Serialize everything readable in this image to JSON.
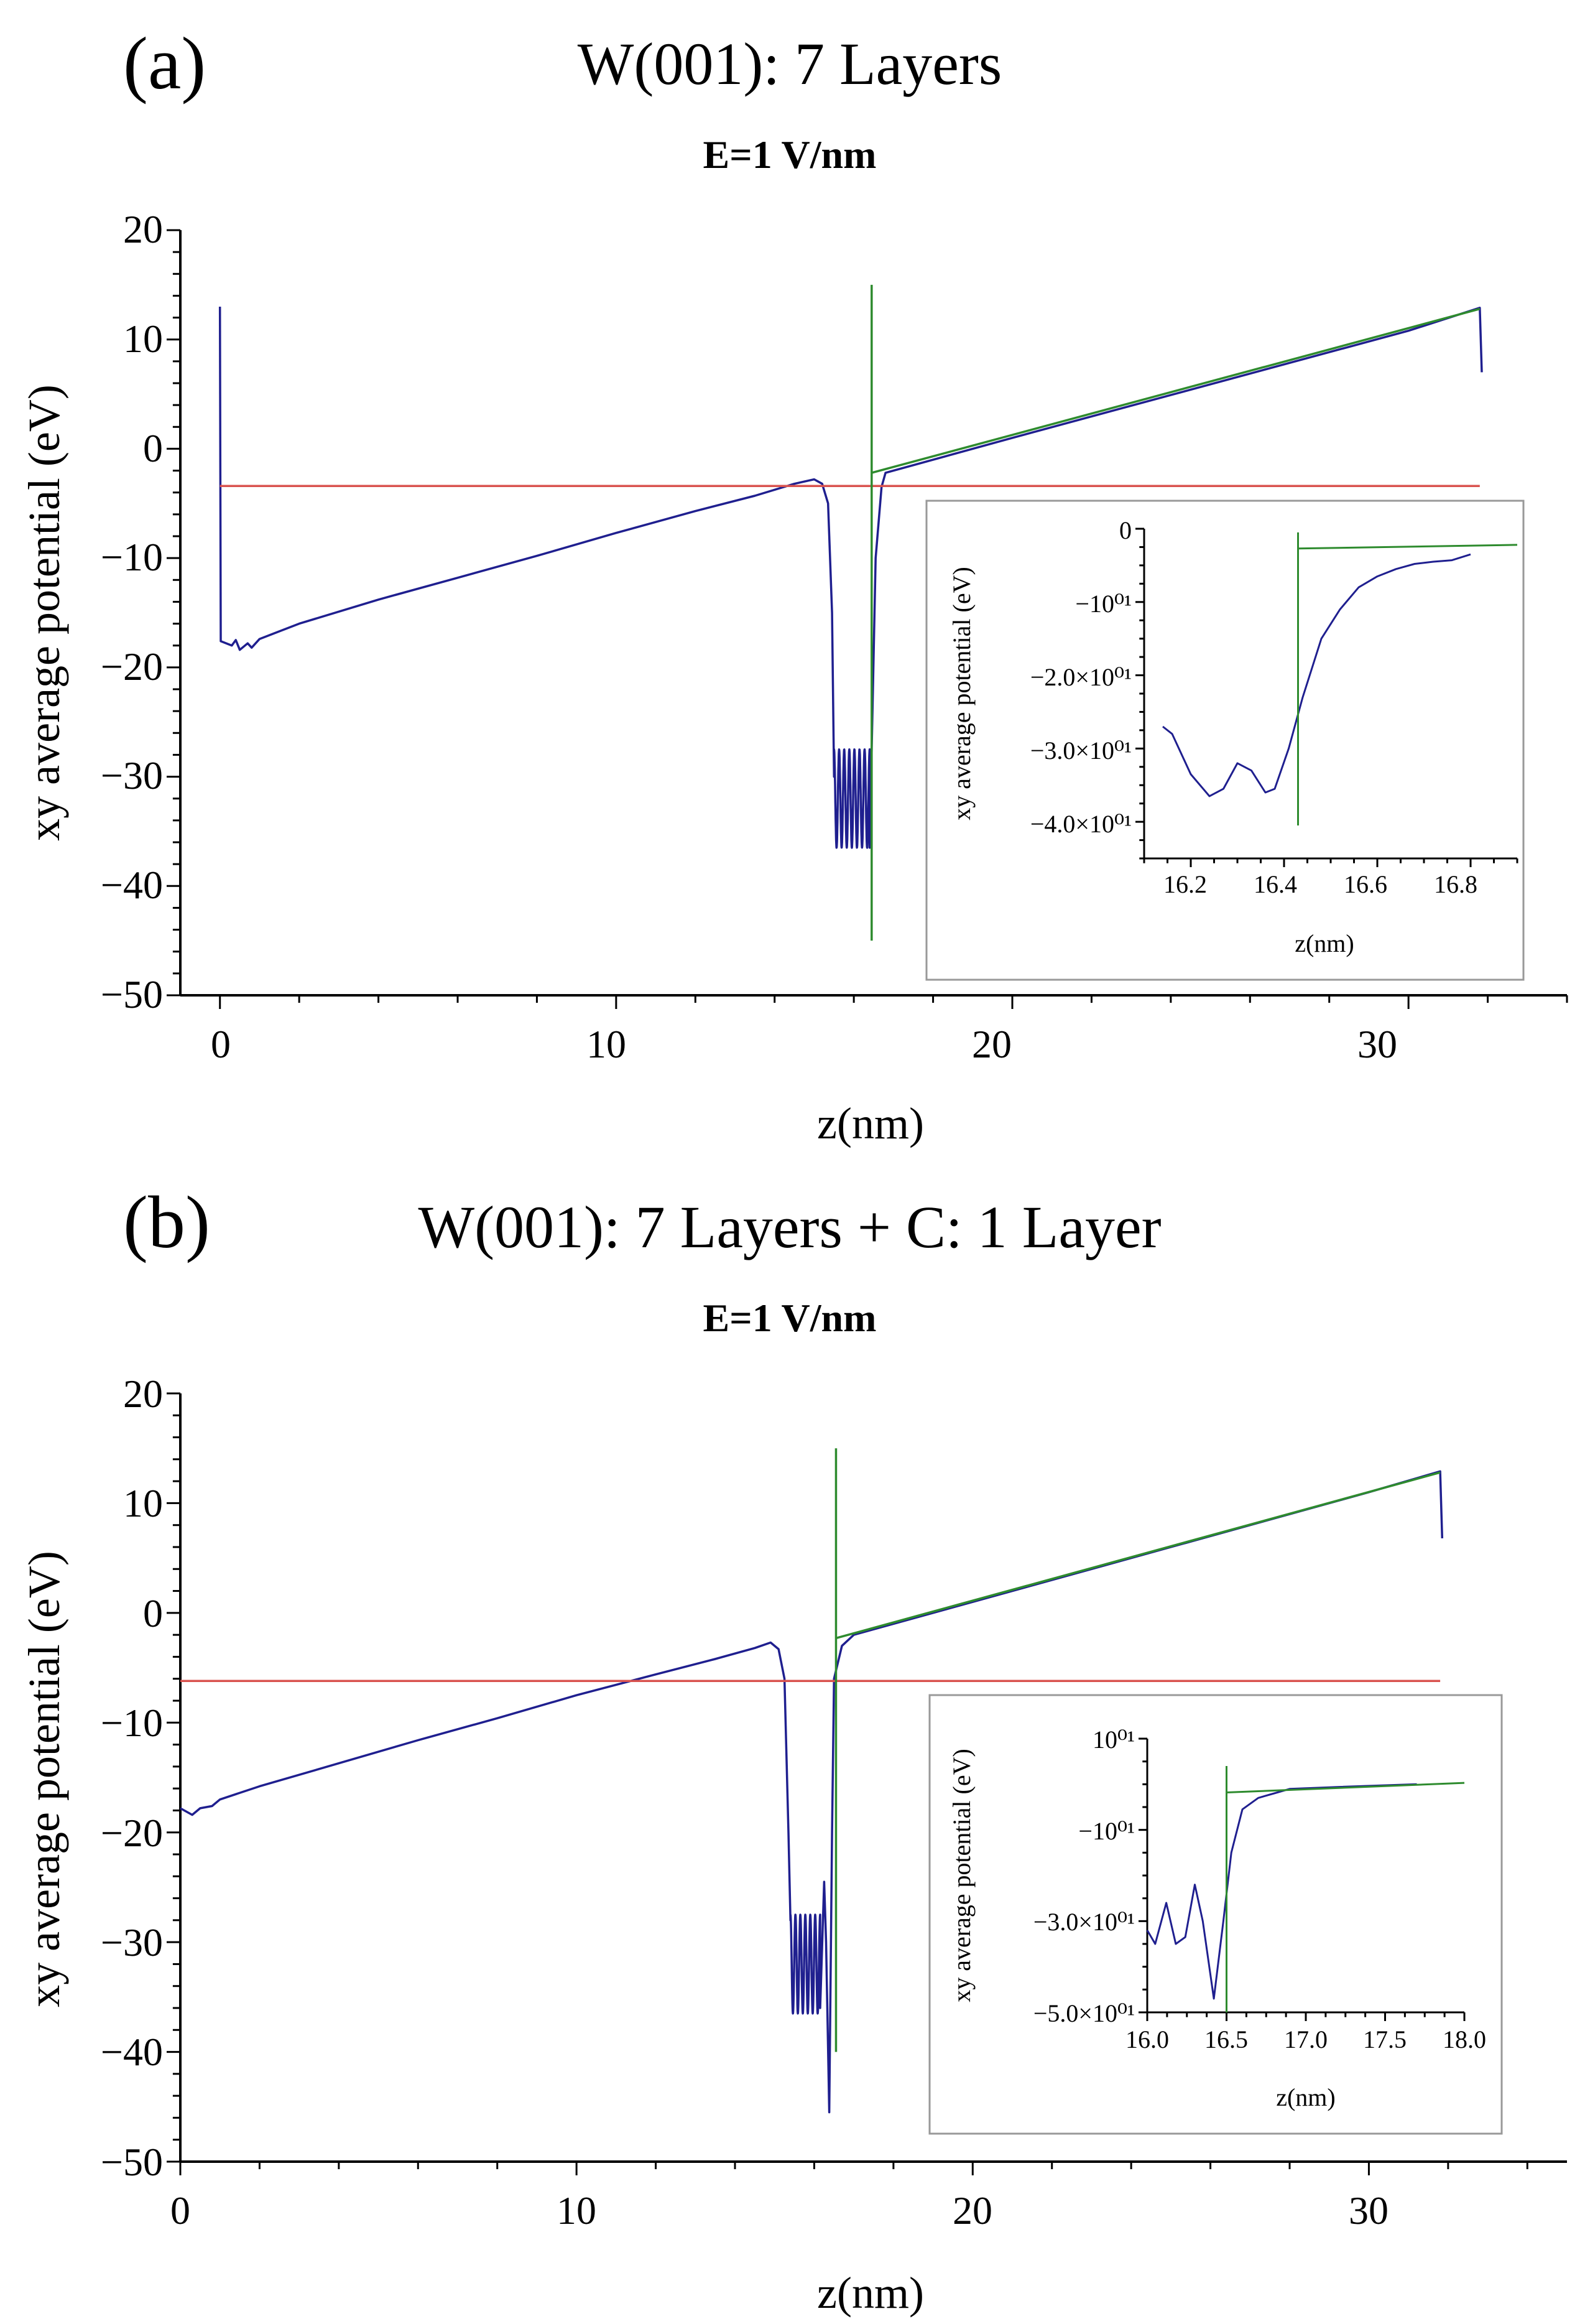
{
  "colors": {
    "potential": "#1f1f8f",
    "reference": "#d9534f",
    "fit": "#2e8b2e",
    "axis": "#000000",
    "inset_border": "#999999"
  },
  "charts": [
    {
      "panel_label": "(a)",
      "title": "W(001): 7 Layers",
      "subtitle": "E=1 V/nm",
      "xlabel": "z(nm)",
      "ylabel": "xy average potential (eV)",
      "xticks": [
        "0",
        "10",
        "20",
        "30"
      ],
      "yticks": [
        "20",
        "10",
        "0",
        "−10",
        "−20",
        "−30",
        "−40",
        "−50"
      ],
      "inset": {
        "xlabel": "z(nm)",
        "ylabel": "xy average potential (eV)",
        "xticks": [
          "16.2",
          "16.4",
          "16.6",
          "16.8"
        ],
        "yticks": [
          "0",
          "−10⁰¹",
          "−2.0×10⁰¹",
          "−3.0×10⁰¹",
          "−4.0×10⁰¹"
        ]
      }
    },
    {
      "panel_label": "(b)",
      "title": "W(001): 7 Layers + C: 1 Layer",
      "subtitle": "E=1 V/nm",
      "xlabel": "z(nm)",
      "ylabel": "xy average potential (eV)",
      "xticks": [
        "0",
        "10",
        "20",
        "30"
      ],
      "yticks": [
        "20",
        "10",
        "0",
        "−10",
        "−20",
        "−30",
        "−40",
        "−50"
      ],
      "inset": {
        "xlabel": "z(nm)",
        "ylabel": "xy average potential (eV)",
        "xticks": [
          "16.0",
          "16.5",
          "17.0",
          "17.5",
          "18.0"
        ],
        "yticks": [
          "10⁰¹",
          "−10⁰¹",
          "−3.0×10⁰¹",
          "−5.0×10⁰¹"
        ]
      }
    }
  ],
  "chart_data": [
    {
      "type": "line",
      "title": "W(001): 7 Layers",
      "subtitle": "E=1 V/nm",
      "xlabel": "z(nm)",
      "ylabel": "xy average potential (eV)",
      "xlim": [
        -1,
        34
      ],
      "ylim": [
        -50,
        20
      ],
      "xticks": [
        0,
        10,
        20,
        30
      ],
      "yticks": [
        20,
        10,
        0,
        -10,
        -20,
        -30,
        -40,
        -50
      ],
      "series": [
        {
          "role": "potential",
          "points": [
            [
              0.0,
              13
            ],
            [
              0.02,
              -17.6
            ],
            [
              0.3,
              -18.0
            ],
            [
              0.4,
              -17.5
            ],
            [
              0.5,
              -18.4
            ],
            [
              0.7,
              -17.8
            ],
            [
              0.8,
              -18.2
            ],
            [
              1.0,
              -17.4
            ],
            [
              2.0,
              -16.0
            ],
            [
              4.0,
              -13.8
            ],
            [
              6.0,
              -11.8
            ],
            [
              8.0,
              -9.8
            ],
            [
              10.0,
              -7.7
            ],
            [
              12.0,
              -5.7
            ],
            [
              13.5,
              -4.3
            ],
            [
              14.5,
              -3.2
            ],
            [
              15.0,
              -2.8
            ],
            [
              15.2,
              -3.2
            ],
            [
              15.35,
              -5.0
            ],
            [
              15.45,
              -15.0
            ],
            [
              15.5,
              -30.0
            ]
          ],
          "oscillation": {
            "x_start": 15.5,
            "x_end": 16.4,
            "cycles": 7,
            "y_max": -27.5,
            "y_min": -36.5
          },
          "tail": [
            [
              16.4,
              -36.5
            ],
            [
              16.55,
              -10.0
            ],
            [
              16.7,
              -3.5
            ],
            [
              16.8,
              -2.2
            ],
            [
              17.5,
              -1.5
            ],
            [
              20,
              1.0
            ],
            [
              25,
              5.9
            ],
            [
              30,
              10.8
            ],
            [
              31.8,
              12.9
            ],
            [
              31.85,
              7.0
            ]
          ]
        },
        {
          "role": "reference",
          "points": [
            [
              0.0,
              -3.4
            ],
            [
              31.8,
              -3.4
            ]
          ]
        },
        {
          "role": "fit",
          "segments": [
            [
              [
                16.45,
                15
              ],
              [
                16.45,
                -45
              ]
            ],
            [
              [
                16.45,
                -2.2
              ],
              [
                31.8,
                12.8
              ]
            ]
          ]
        }
      ],
      "inset": {
        "xlabel": "z(nm)",
        "ylabel": "xy average potential (eV)",
        "xlim": [
          16.1,
          16.9
        ],
        "ylim": [
          -45,
          0
        ],
        "xticks": [
          16.2,
          16.4,
          16.6,
          16.8
        ],
        "yticks": [
          0,
          -10,
          -20,
          -30,
          -40
        ],
        "series": [
          {
            "role": "potential",
            "points": [
              [
                16.14,
                -27.0
              ],
              [
                16.16,
                -28.0
              ],
              [
                16.2,
                -33.5
              ],
              [
                16.24,
                -36.5
              ],
              [
                16.27,
                -35.5
              ],
              [
                16.3,
                -32.0
              ],
              [
                16.33,
                -33.0
              ],
              [
                16.36,
                -36.0
              ],
              [
                16.38,
                -35.5
              ],
              [
                16.41,
                -30.0
              ],
              [
                16.44,
                -23.0
              ],
              [
                16.48,
                -15.0
              ],
              [
                16.52,
                -11.0
              ],
              [
                16.56,
                -8.0
              ],
              [
                16.6,
                -6.5
              ],
              [
                16.64,
                -5.5
              ],
              [
                16.68,
                -4.8
              ],
              [
                16.72,
                -4.5
              ],
              [
                16.76,
                -4.3
              ],
              [
                16.8,
                -3.5
              ]
            ]
          },
          {
            "role": "fit",
            "segments": [
              [
                [
                  16.43,
                  -0.5
                ],
                [
                  16.43,
                  -40.5
                ]
              ],
              [
                [
                  16.43,
                  -2.7
                ],
                [
                  16.9,
                  -2.2
                ]
              ]
            ]
          }
        ]
      }
    },
    {
      "type": "line",
      "title": "W(001): 7 Layers + C: 1 Layer",
      "subtitle": "E=1 V/nm",
      "xlabel": "z(nm)",
      "ylabel": "xy average potential (eV)",
      "xlim": [
        0,
        35
      ],
      "ylim": [
        -50,
        20
      ],
      "xticks": [
        0,
        10,
        20,
        30
      ],
      "yticks": [
        20,
        10,
        0,
        -10,
        -20,
        -30,
        -40,
        -50
      ],
      "series": [
        {
          "role": "potential",
          "points": [
            [
              0.0,
              -17.8
            ],
            [
              0.3,
              -18.4
            ],
            [
              0.5,
              -17.8
            ],
            [
              0.8,
              -17.6
            ],
            [
              1.0,
              -17.0
            ],
            [
              2.0,
              -15.8
            ],
            [
              4.0,
              -13.7
            ],
            [
              6.0,
              -11.6
            ],
            [
              8.0,
              -9.6
            ],
            [
              10.0,
              -7.5
            ],
            [
              12.0,
              -5.6
            ],
            [
              13.5,
              -4.2
            ],
            [
              14.5,
              -3.2
            ],
            [
              14.9,
              -2.7
            ],
            [
              15.1,
              -3.3
            ],
            [
              15.25,
              -6.0
            ],
            [
              15.35,
              -20.0
            ],
            [
              15.4,
              -28.0
            ]
          ],
          "oscillation": {
            "x_start": 15.4,
            "x_end": 16.15,
            "cycles": 6,
            "y_max": -27.5,
            "y_min": -36.5
          },
          "tail": [
            [
              16.15,
              -36.0
            ],
            [
              16.25,
              -24.5
            ],
            [
              16.3,
              -30.0
            ],
            [
              16.38,
              -45.5
            ],
            [
              16.45,
              -20.0
            ],
            [
              16.5,
              -6.0
            ],
            [
              16.7,
              -3.0
            ],
            [
              17.0,
              -2.0
            ],
            [
              20,
              1.0
            ],
            [
              25,
              6.0
            ],
            [
              30,
              11.0
            ],
            [
              31.8,
              12.9
            ],
            [
              31.85,
              6.8
            ]
          ]
        },
        {
          "role": "reference",
          "points": [
            [
              0.0,
              -6.2
            ],
            [
              31.8,
              -6.2
            ]
          ]
        },
        {
          "role": "fit",
          "segments": [
            [
              [
                16.55,
                15
              ],
              [
                16.55,
                -40
              ]
            ],
            [
              [
                16.55,
                -2.3
              ],
              [
                31.8,
                12.8
              ]
            ]
          ]
        }
      ],
      "inset": {
        "xlabel": "z(nm)",
        "ylabel": "xy average potential (eV)",
        "xlim": [
          16.0,
          18.0
        ],
        "ylim": [
          -50,
          10
        ],
        "xticks": [
          16.0,
          16.5,
          17.0,
          17.5,
          18.0
        ],
        "yticks": [
          10,
          -10,
          -30,
          -50
        ],
        "series": [
          {
            "role": "potential",
            "points": [
              [
                16.0,
                -32.0
              ],
              [
                16.05,
                -35.0
              ],
              [
                16.12,
                -26.0
              ],
              [
                16.18,
                -35.0
              ],
              [
                16.24,
                -33.5
              ],
              [
                16.3,
                -22.0
              ],
              [
                16.35,
                -30.0
              ],
              [
                16.42,
                -47.0
              ],
              [
                16.48,
                -30.0
              ],
              [
                16.53,
                -15.0
              ],
              [
                16.6,
                -5.5
              ],
              [
                16.7,
                -3.0
              ],
              [
                16.8,
                -2.0
              ],
              [
                16.9,
                -1.0
              ],
              [
                17.2,
                -0.6
              ],
              [
                17.7,
                0.0
              ]
            ]
          },
          {
            "role": "fit",
            "segments": [
              [
                [
                  16.5,
                  4.0
                ],
                [
                  16.5,
                  -50.0
                ]
              ],
              [
                [
                  16.5,
                  -1.8
                ],
                [
                  18.0,
                  0.3
                ]
              ]
            ]
          }
        ]
      }
    }
  ]
}
